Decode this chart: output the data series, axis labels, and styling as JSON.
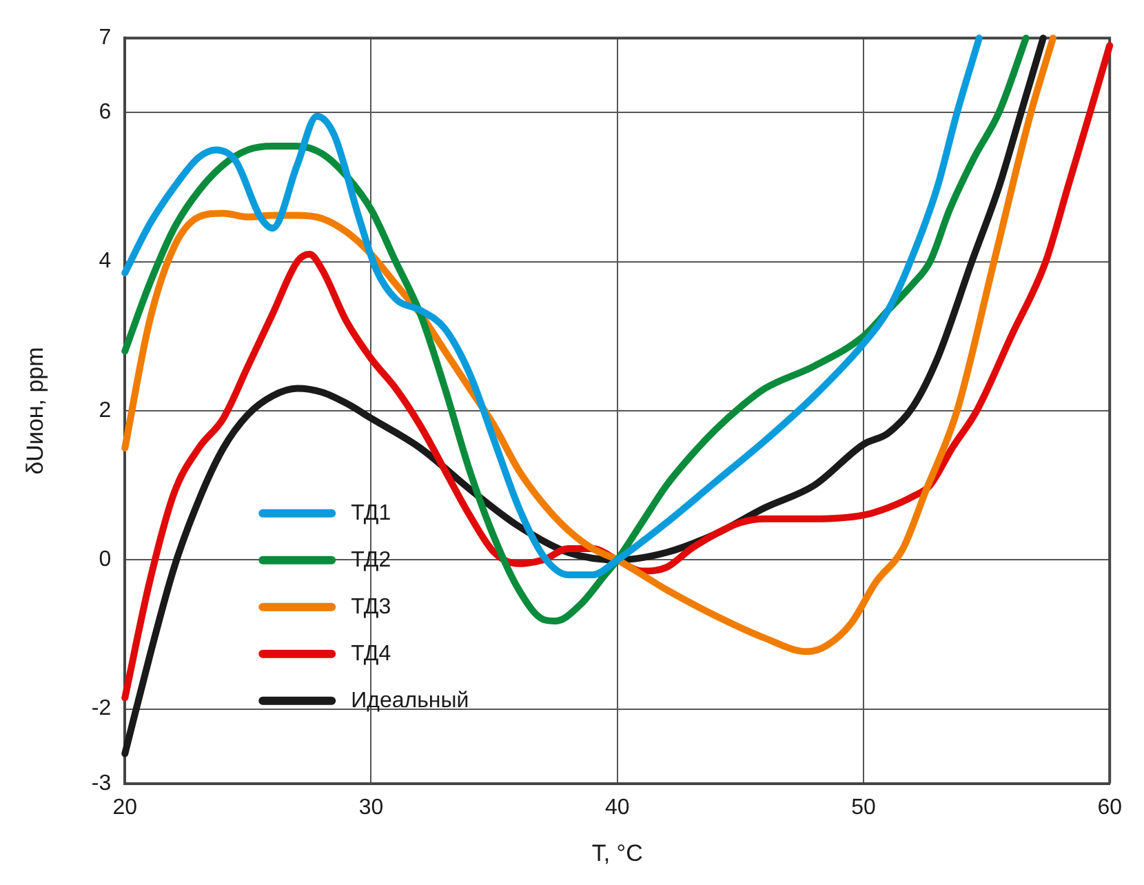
{
  "chart_data": {
    "type": "line",
    "xlabel": "T, °C",
    "ylabel": "δUион, ppm",
    "xlim": [
      20,
      60
    ],
    "xticks": [
      20,
      30,
      40,
      50,
      60
    ],
    "ylim": [
      -3,
      7
    ],
    "yticks": [
      -3,
      -2,
      0,
      2,
      4,
      6,
      7
    ],
    "grid": true,
    "legend": "bottom left",
    "marker": "none",
    "line_style": "solid",
    "series": [
      {
        "name": "ТД1",
        "color": "#0b9cdc",
        "x": [
          20,
          21,
          22,
          23,
          23.7,
          24.5,
          25.5,
          26,
          27,
          27.8,
          28.5,
          29.5,
          30.2,
          31,
          32,
          33,
          34,
          35,
          36,
          37,
          38,
          39,
          40,
          42,
          44,
          46,
          48,
          50,
          51,
          51.9,
          53,
          53.8,
          54.7
        ],
        "values": [
          3.85,
          4.5,
          5.0,
          5.4,
          5.5,
          5.35,
          4.6,
          4.45,
          5.3,
          5.95,
          5.7,
          4.6,
          3.9,
          3.5,
          3.35,
          3.1,
          2.5,
          1.6,
          0.7,
          0.05,
          -0.2,
          -0.2,
          0,
          0.5,
          1.05,
          1.6,
          2.2,
          2.9,
          3.35,
          4.0,
          5.0,
          6.0,
          7.0
        ]
      },
      {
        "name": "ТД2",
        "color": "#0a8c3c",
        "x": [
          20,
          21,
          22,
          23,
          24,
          25,
          26,
          27,
          28,
          29,
          30,
          31,
          32,
          33,
          34,
          35,
          36,
          37,
          37.5,
          38.5,
          39.5,
          40,
          41,
          42,
          43,
          44,
          45,
          46,
          48,
          50,
          51,
          52,
          52.7,
          53.5,
          54.5,
          55.5,
          56.6
        ],
        "values": [
          2.8,
          3.7,
          4.45,
          4.95,
          5.3,
          5.5,
          5.55,
          5.55,
          5.45,
          5.15,
          4.7,
          4.0,
          3.3,
          2.3,
          1.2,
          0.3,
          -0.4,
          -0.8,
          -0.82,
          -0.6,
          -0.2,
          0,
          0.5,
          1.0,
          1.4,
          1.75,
          2.05,
          2.3,
          2.6,
          3.0,
          3.35,
          3.7,
          4.0,
          4.7,
          5.4,
          6.0,
          7.0
        ]
      },
      {
        "name": "ТД3",
        "color": "#f07d00",
        "x": [
          20,
          21,
          22,
          23,
          24,
          25,
          26,
          27,
          28,
          29,
          30,
          31,
          32,
          33,
          34,
          35,
          36,
          37,
          38,
          39,
          40,
          42,
          44,
          46,
          47.7,
          48.5,
          49.5,
          50.5,
          51.6,
          52.5,
          53.8,
          55.3,
          56.8,
          57.7
        ],
        "values": [
          1.5,
          3.2,
          4.2,
          4.6,
          4.65,
          4.6,
          4.62,
          4.62,
          4.58,
          4.4,
          4.1,
          3.7,
          3.3,
          2.8,
          2.3,
          1.8,
          1.2,
          0.75,
          0.4,
          0.15,
          0,
          -0.4,
          -0.75,
          -1.05,
          -1.23,
          -1.15,
          -0.85,
          -0.3,
          0.15,
          0.9,
          2.0,
          4.0,
          6.0,
          7.0
        ]
      },
      {
        "name": "ТД4",
        "color": "#e10a0a",
        "x": [
          20,
          21,
          22,
          23,
          24,
          25,
          26,
          27,
          27.5,
          28,
          29,
          30,
          31,
          32,
          33,
          34,
          35,
          36,
          37,
          38,
          39,
          40,
          41,
          42,
          43,
          44,
          45,
          46,
          48,
          50,
          51,
          52,
          52.7,
          53.6,
          54.6,
          56,
          57.4,
          58.3,
          59.2,
          60
        ],
        "values": [
          -1.85,
          -0.3,
          0.9,
          1.5,
          1.9,
          2.6,
          3.3,
          4.0,
          4.1,
          3.9,
          3.2,
          2.7,
          2.3,
          1.8,
          1.2,
          0.6,
          0.1,
          -0.05,
          0,
          0.15,
          0.15,
          0,
          -0.15,
          -0.1,
          0.15,
          0.35,
          0.5,
          0.55,
          0.55,
          0.6,
          0.7,
          0.85,
          1.0,
          1.5,
          2.0,
          3.0,
          4.0,
          5.0,
          6.0,
          6.9
        ]
      },
      {
        "name": "Идеальный",
        "color": "#1a1a1a",
        "x": [
          20,
          21,
          22,
          23,
          24,
          25,
          26,
          27,
          28,
          29,
          30,
          32,
          34,
          36,
          38,
          40,
          42,
          44,
          46,
          48,
          50,
          51,
          52,
          53,
          54.4,
          55.5,
          56.4,
          57.3
        ],
        "values": [
          -2.6,
          -1.3,
          -0.1,
          0.8,
          1.5,
          1.95,
          2.2,
          2.3,
          2.25,
          2.1,
          1.9,
          1.5,
          0.95,
          0.45,
          0.1,
          0,
          0.1,
          0.35,
          0.7,
          1.0,
          1.55,
          1.7,
          2.05,
          2.7,
          4.0,
          5.0,
          6.0,
          7.0
        ]
      }
    ]
  }
}
